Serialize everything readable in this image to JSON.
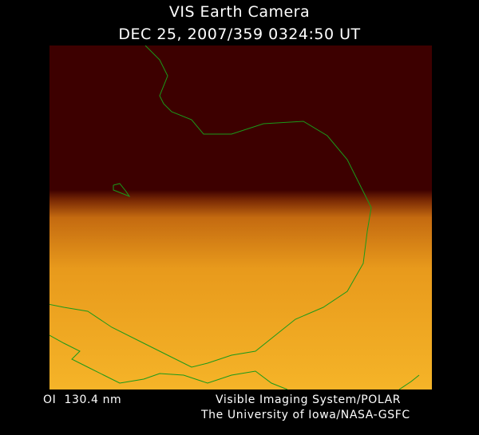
{
  "title": "VIS Earth Camera",
  "timestamp": "DEC 25, 2007/359 0324:50 UT",
  "wavelength": "OI  130.4 nm",
  "instrument": "Visible Imaging System/POLAR",
  "credit": "The University of Iowa/NASA-GSFC",
  "colors": {
    "night": "#3d0000",
    "day_dim": "#c46a10",
    "day_bright": "#f5b020",
    "coastline": "#1a9a1a"
  }
}
